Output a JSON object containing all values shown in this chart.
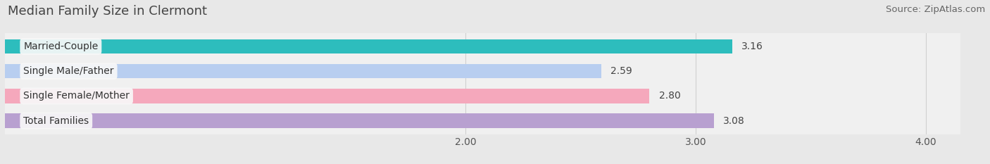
{
  "title": "Median Family Size in Clermont",
  "source": "Source: ZipAtlas.com",
  "categories": [
    "Married-Couple",
    "Single Male/Father",
    "Single Female/Mother",
    "Total Families"
  ],
  "values": [
    3.16,
    2.59,
    2.8,
    3.08
  ],
  "bar_colors": [
    "#2dbdbd",
    "#b8cef0",
    "#f5a8bc",
    "#b8a0d0"
  ],
  "xlim_left": 0,
  "xlim_right": 4.15,
  "xticks": [
    2.0,
    3.0,
    4.0
  ],
  "xtick_labels": [
    "2.00",
    "3.00",
    "4.00"
  ],
  "bar_height": 0.58,
  "background_color": "#e8e8e8",
  "plot_bg_color": "#f0f0f0",
  "title_fontsize": 13,
  "source_fontsize": 9.5,
  "label_fontsize": 10,
  "value_fontsize": 10,
  "tick_fontsize": 10,
  "grid_color": "#d0d0d0",
  "label_box_color": "#f8f8f8"
}
